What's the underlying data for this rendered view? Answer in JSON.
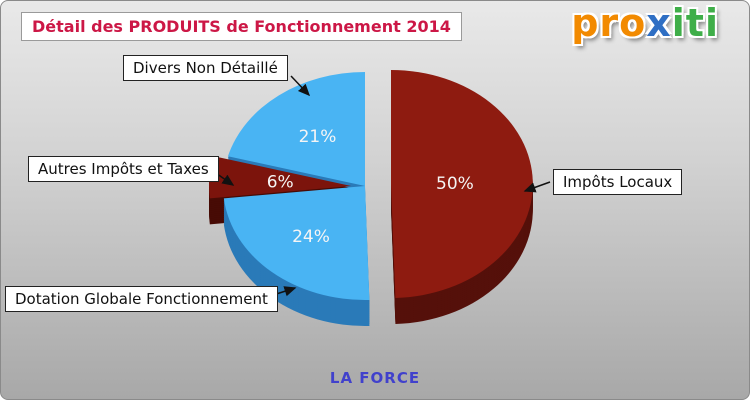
{
  "page": {
    "title": "Détail des PRODUITS de Fonctionnement 2014",
    "title_color": "#cc1746",
    "footer": "LA FORCE",
    "footer_color": "#4141cc",
    "logo": {
      "pro": "pro",
      "pro_color": "#f28a00",
      "x": "x",
      "x_color": "#2f6fc4",
      "iti": "iti",
      "iti_color": "#3fae49"
    }
  },
  "chart_data": {
    "type": "pie",
    "title": "Détail des PRODUITS de Fonctionnement 2014",
    "unit": "percent",
    "legend_position": "callout-labels",
    "style": "3d-exploded",
    "slices": [
      {
        "label": "Impôts Locaux",
        "value": 50,
        "display": "50%",
        "color": "#8e1b10",
        "side_color": "#55100a"
      },
      {
        "label": "Dotation Globale Fonctionnement",
        "value": 24,
        "display": "24%",
        "color": "#49b4f3",
        "side_color": "#2a7ab8"
      },
      {
        "label": "Autres Impôts et Taxes",
        "value": 6,
        "display": "6%",
        "color": "#7c140c",
        "side_color": "#470b05"
      },
      {
        "label": "Divers Non Détaillé",
        "value": 21,
        "display": "21%",
        "color": "#49b4f3",
        "side_color": "#2a7ab8"
      }
    ],
    "footer_label": "LA FORCE"
  }
}
